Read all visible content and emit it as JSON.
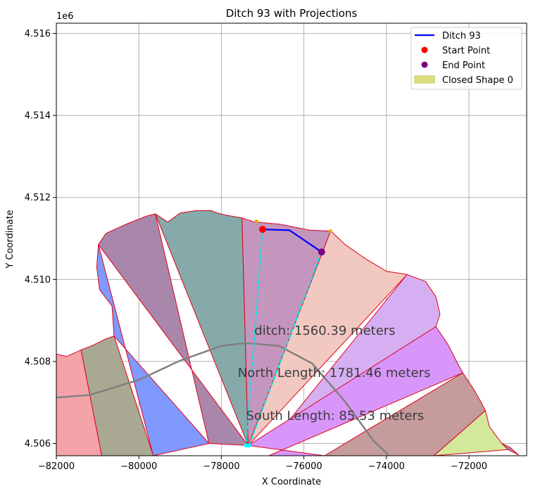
{
  "chart_data": {
    "type": "line",
    "title": "Ditch 93 with Projections",
    "xlabel": "X Coordinate",
    "ylabel": "Y Coordinate",
    "y_offset_label": "1e6",
    "xlim": [
      -82000,
      -70600
    ],
    "ylim": [
      4.5057,
      4.51625
    ],
    "x_ticks": [
      -82000,
      -80000,
      -78000,
      -76000,
      -74000,
      -72000
    ],
    "x_tick_labels": [
      "−82000",
      "−80000",
      "−78000",
      "−76000",
      "−74000",
      "−72000"
    ],
    "y_ticks": [
      4.506,
      4.508,
      4.51,
      4.512,
      4.514,
      4.516
    ],
    "y_tick_labels": [
      "4.506",
      "4.508",
      "4.510",
      "4.512",
      "4.514",
      "4.516"
    ],
    "grid": true,
    "legend_position": "top-right",
    "legend": [
      {
        "label": "Ditch 93",
        "kind": "line",
        "color": "#0000ff"
      },
      {
        "label": "Start Point",
        "kind": "marker",
        "color": "#ff0000"
      },
      {
        "label": "End Point",
        "kind": "marker",
        "color": "#800080"
      },
      {
        "label": "Closed Shape 0",
        "kind": "patch",
        "color": "#dede7f"
      }
    ],
    "annotations": [
      {
        "text": "ditch: 1560.39 meters",
        "x": -77200,
        "y": 4.50875
      },
      {
        "text": "North Length: 1781.46 meters",
        "x": -77600,
        "y": 4.50772
      },
      {
        "text": "South Length: 85.53 meters",
        "x": -77400,
        "y": 4.50668
      }
    ],
    "ditch": {
      "x": [
        -77000,
        -76650,
        -76350,
        -75570
      ],
      "y": [
        4.51122,
        4.51121,
        4.5112,
        4.51067
      ]
    },
    "start_point": {
      "x": -77000,
      "y": 4.51122
    },
    "end_point": {
      "x": -75570,
      "y": 4.51067
    },
    "projection_points": {
      "x": [
        -77150,
        -75350
      ],
      "y": [
        4.51142,
        4.51118
      ]
    },
    "projection_lines": [
      {
        "x": [
          -77000,
          -77400
        ],
        "y": [
          4.51122,
          4.50595
        ]
      },
      {
        "x": [
          -75570,
          -77330
        ],
        "y": [
          4.51067,
          4.50595
        ]
      }
    ],
    "center_curve": {
      "x": [
        -82000,
        -81200,
        -80000,
        -79000,
        -78000,
        -77400,
        -76600,
        -75800,
        -75000,
        -74300,
        -73950
      ],
      "y": [
        4.50712,
        4.50718,
        4.50755,
        4.50802,
        4.50838,
        4.50845,
        4.50838,
        4.50795,
        4.50702,
        4.50605,
        4.50572
      ]
    },
    "polygons": [
      {
        "color": "#f4a3a8",
        "x": [
          -82000,
          -81750,
          -81400,
          -80900,
          -80900,
          -82000
        ],
        "y": [
          4.50818,
          4.50812,
          4.50828,
          4.5057,
          4.5057,
          4.5057
        ]
      },
      {
        "color": "#a9a893",
        "x": [
          -81400,
          -81100,
          -80800,
          -80600,
          -80600,
          -79650,
          -79650,
          -80900
        ],
        "y": [
          4.50828,
          4.5084,
          4.50855,
          4.50862,
          4.50862,
          4.5057,
          4.5057,
          4.5057
        ]
      },
      {
        "color": "#8099ff",
        "x": [
          -80600,
          -80650,
          -80950,
          -81020,
          -80980,
          -79650,
          -78300
        ],
        "y": [
          4.50862,
          4.50935,
          4.50975,
          4.5103,
          4.51085,
          4.5057,
          4.506
        ]
      },
      {
        "color": "#a987ab",
        "x": [
          -80980,
          -80800,
          -80300,
          -79800,
          -79600,
          -78300,
          -77350
        ],
        "y": [
          4.51085,
          4.51112,
          4.51135,
          4.51155,
          4.5116,
          4.506,
          4.50595
        ]
      },
      {
        "color": "#86a9aa",
        "x": [
          -79600,
          -79300,
          -79000,
          -78600,
          -78250,
          -78100,
          -77900,
          -77500,
          -77350
        ],
        "y": [
          4.5116,
          4.5114,
          4.51162,
          4.51168,
          4.51168,
          4.51162,
          4.51157,
          4.5115,
          4.50595
        ]
      },
      {
        "color": "#c496bd",
        "x": [
          -77500,
          -77200,
          -76600,
          -75850,
          -75350,
          -77350
        ],
        "y": [
          4.5115,
          4.5114,
          4.51135,
          4.5112,
          4.51118,
          4.50595
        ]
      },
      {
        "color": "#f2c9c1",
        "x": [
          -75350,
          -75000,
          -74500,
          -74000,
          -73500,
          -77350
        ],
        "y": [
          4.51118,
          4.51085,
          4.5105,
          4.5102,
          4.51012,
          4.50595
        ]
      },
      {
        "color": "#d6aff2",
        "x": [
          -73500,
          -73050,
          -72800,
          -72700,
          -72800,
          -76850
        ],
        "y": [
          4.51012,
          4.50995,
          4.50958,
          4.50915,
          4.50885,
          4.50595
        ]
      },
      {
        "color": "#d896fa",
        "x": [
          -72800,
          -72500,
          -72300,
          -72150,
          -76850,
          -75500,
          -77350
        ],
        "y": [
          4.50885,
          4.5084,
          4.508,
          4.50772,
          4.5057,
          4.5057,
          4.50595
        ]
      },
      {
        "color": "#c59b9b",
        "x": [
          -72150,
          -71900,
          -71700,
          -71600,
          -72850,
          -75500
        ],
        "y": [
          4.50772,
          4.50735,
          4.507,
          4.5068,
          4.5057,
          4.5057
        ]
      },
      {
        "color": "#d3e89b",
        "x": [
          -71600,
          -71500,
          -71200,
          -71050,
          -72850
        ],
        "y": [
          4.5068,
          4.5064,
          4.506,
          4.50585,
          4.5057
        ]
      },
      {
        "color": "#a987ab",
        "x": [
          -71200,
          -71000,
          -70800,
          -71050
        ],
        "y": [
          4.506,
          4.5059,
          4.50572,
          4.50585
        ]
      }
    ]
  }
}
